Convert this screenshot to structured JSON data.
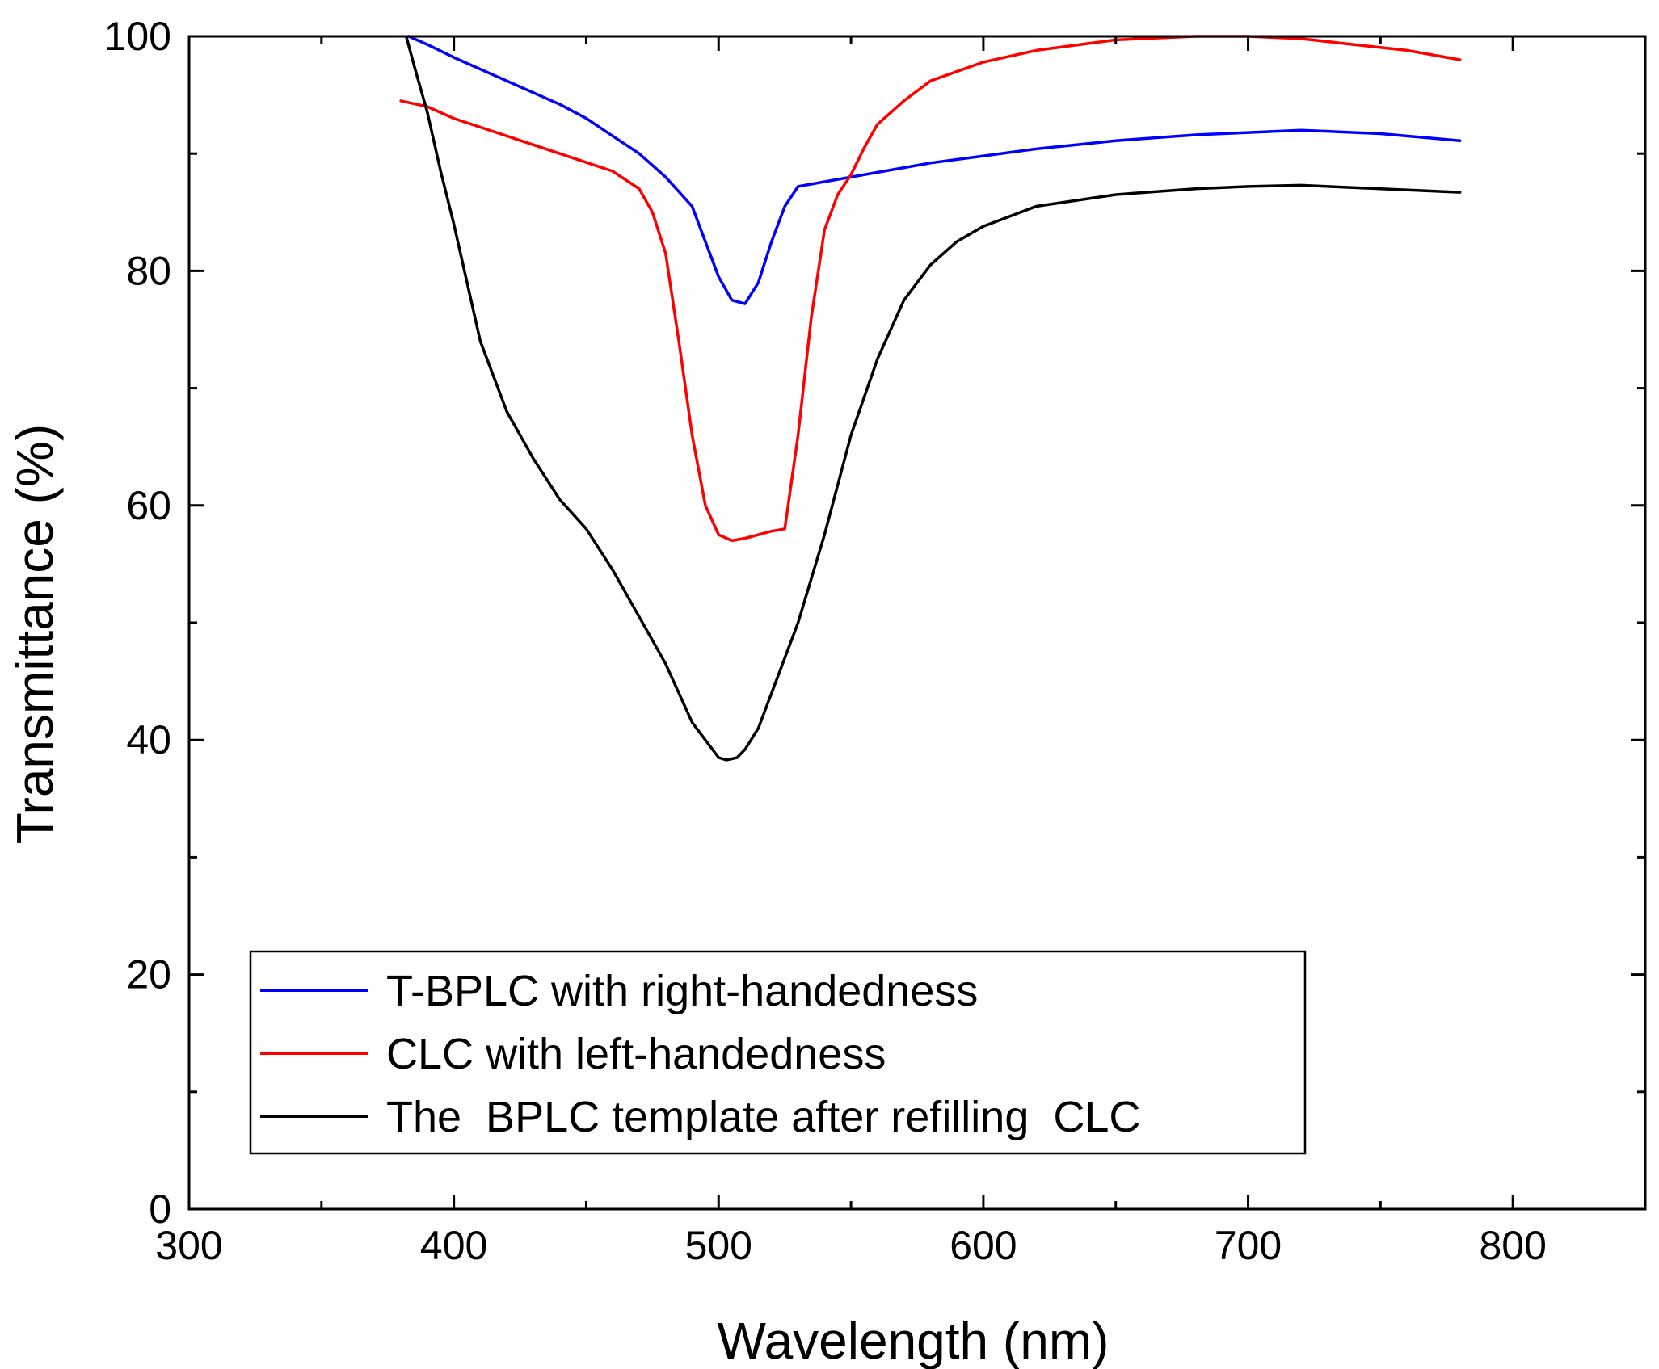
{
  "chart_data": {
    "type": "line",
    "title": "",
    "xlabel": "Wavelength (nm)",
    "ylabel": "Transmittance (%)",
    "xlim": [
      300,
      850
    ],
    "ylim": [
      0,
      100
    ],
    "xticks": [
      300,
      400,
      500,
      600,
      700,
      800
    ],
    "yticks": [
      0,
      20,
      40,
      60,
      80,
      100
    ],
    "xtick_labels": [
      "300",
      "400",
      "500",
      "600",
      "700",
      "800"
    ],
    "ytick_labels": [
      "0",
      "20",
      "40",
      "60",
      "80",
      "100"
    ],
    "legend_position": "bottom-center",
    "series": [
      {
        "name": "T-BPLC with right-handedness",
        "color": "#0000ff",
        "x": [
          383,
          390,
          400,
          410,
          420,
          430,
          440,
          450,
          460,
          470,
          480,
          490,
          495,
          500,
          505,
          510,
          515,
          520,
          525,
          530,
          540,
          550,
          560,
          570,
          580,
          600,
          620,
          650,
          680,
          700,
          720,
          750,
          780
        ],
        "y": [
          100,
          99.3,
          98.2,
          97.2,
          96.2,
          95.2,
          94.2,
          93.0,
          91.5,
          90.0,
          88.0,
          85.5,
          82.5,
          79.5,
          77.5,
          77.2,
          79.0,
          82.5,
          85.5,
          87.2,
          87.6,
          88.0,
          88.4,
          88.8,
          89.2,
          89.8,
          90.4,
          91.1,
          91.6,
          91.8,
          92.0,
          91.7,
          91.1
        ]
      },
      {
        "name": "CLC with left-handedness",
        "color": "#ff0000",
        "x": [
          380,
          390,
          400,
          420,
          440,
          460,
          470,
          475,
          480,
          485,
          490,
          495,
          500,
          505,
          510,
          520,
          525,
          530,
          535,
          540,
          545,
          550,
          555,
          560,
          570,
          580,
          600,
          620,
          650,
          680,
          700,
          720,
          740,
          760,
          780
        ],
        "y": [
          94.5,
          94.0,
          93.0,
          91.5,
          90.0,
          88.5,
          87.0,
          85.0,
          81.5,
          74.0,
          66.0,
          60.0,
          57.5,
          57.0,
          57.2,
          57.8,
          58.0,
          66.0,
          76.0,
          83.5,
          86.5,
          88.2,
          90.5,
          92.5,
          94.5,
          96.2,
          97.8,
          98.8,
          99.7,
          100.0,
          100.0,
          99.8,
          99.3,
          98.8,
          98.0
        ]
      },
      {
        "name": "The  BPLC template after refilling  CLC",
        "color": "#000000",
        "x": [
          382,
          385,
          390,
          395,
          400,
          410,
          420,
          430,
          440,
          450,
          460,
          470,
          480,
          490,
          500,
          503,
          507,
          510,
          515,
          520,
          530,
          540,
          550,
          560,
          570,
          580,
          590,
          600,
          620,
          650,
          680,
          700,
          720,
          750,
          780
        ],
        "y": [
          100,
          97.5,
          93.5,
          88.5,
          84.0,
          74.0,
          68.0,
          64.0,
          60.5,
          58.0,
          54.5,
          50.5,
          46.5,
          41.5,
          38.5,
          38.3,
          38.5,
          39.2,
          41.0,
          44.0,
          50.0,
          57.5,
          66.0,
          72.5,
          77.5,
          80.5,
          82.5,
          83.8,
          85.5,
          86.5,
          87.0,
          87.2,
          87.3,
          87.0,
          86.7
        ]
      }
    ]
  }
}
